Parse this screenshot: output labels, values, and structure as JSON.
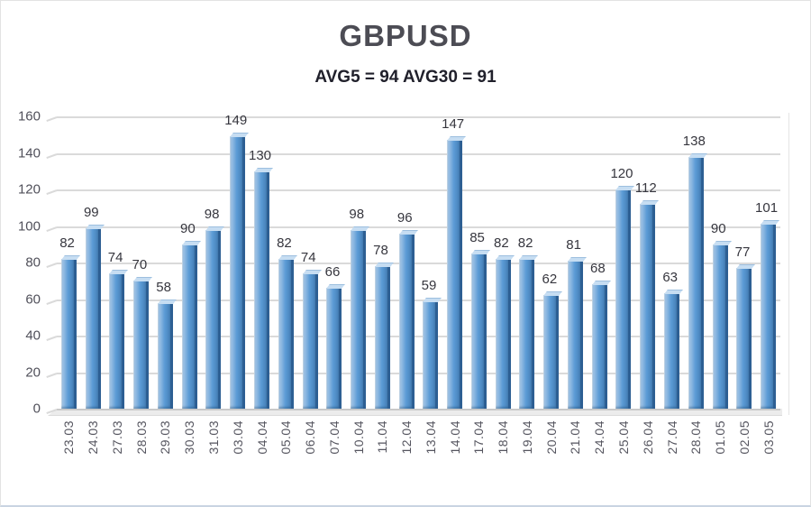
{
  "header": {
    "title": "GBPUSD",
    "subtitle": "AVG5 = 94 AVG30 = 91"
  },
  "colors": {
    "bar_face": "#5b9bd5",
    "bar_face_light": "#aecde9",
    "bar_side_dark": "#2d5f93",
    "bar_top_cap": "#c6ddf2",
    "gridline": "#dadada",
    "floor": "#ececec",
    "title_text": "#4c4c54",
    "subtitle_text": "#20202b",
    "axis_text": "#50505a",
    "value_label_text": "#36363e"
  },
  "chart_data": {
    "type": "bar",
    "style": "3d-column",
    "title": "GBPUSD",
    "subtitle": "AVG5 = 94 AVG30 = 91",
    "avg5": 94,
    "avg30": 91,
    "categories": [
      "23.03",
      "24.03",
      "27.03",
      "28.03",
      "29.03",
      "30.03",
      "31.03",
      "03.04",
      "04.04",
      "05.04",
      "06.04",
      "07.04",
      "10.04",
      "11.04",
      "12.04",
      "13.04",
      "14.04",
      "17.04",
      "18.04",
      "19.04",
      "20.04",
      "21.04",
      "24.04",
      "25.04",
      "26.04",
      "27.04",
      "28.04",
      "01.05",
      "02.05",
      "03.05"
    ],
    "values": [
      82,
      99,
      74,
      70,
      58,
      90,
      98,
      149,
      130,
      82,
      74,
      66,
      98,
      78,
      96,
      59,
      147,
      85,
      82,
      82,
      62,
      81,
      68,
      120,
      112,
      63,
      138,
      90,
      77,
      101
    ],
    "xlabel": "",
    "ylabel": "",
    "ylim": [
      0,
      160
    ],
    "ytick_step": 20,
    "yticks": [
      0,
      20,
      40,
      60,
      80,
      100,
      120,
      140,
      160
    ],
    "grid": true,
    "legend": false,
    "data_labels": true
  }
}
